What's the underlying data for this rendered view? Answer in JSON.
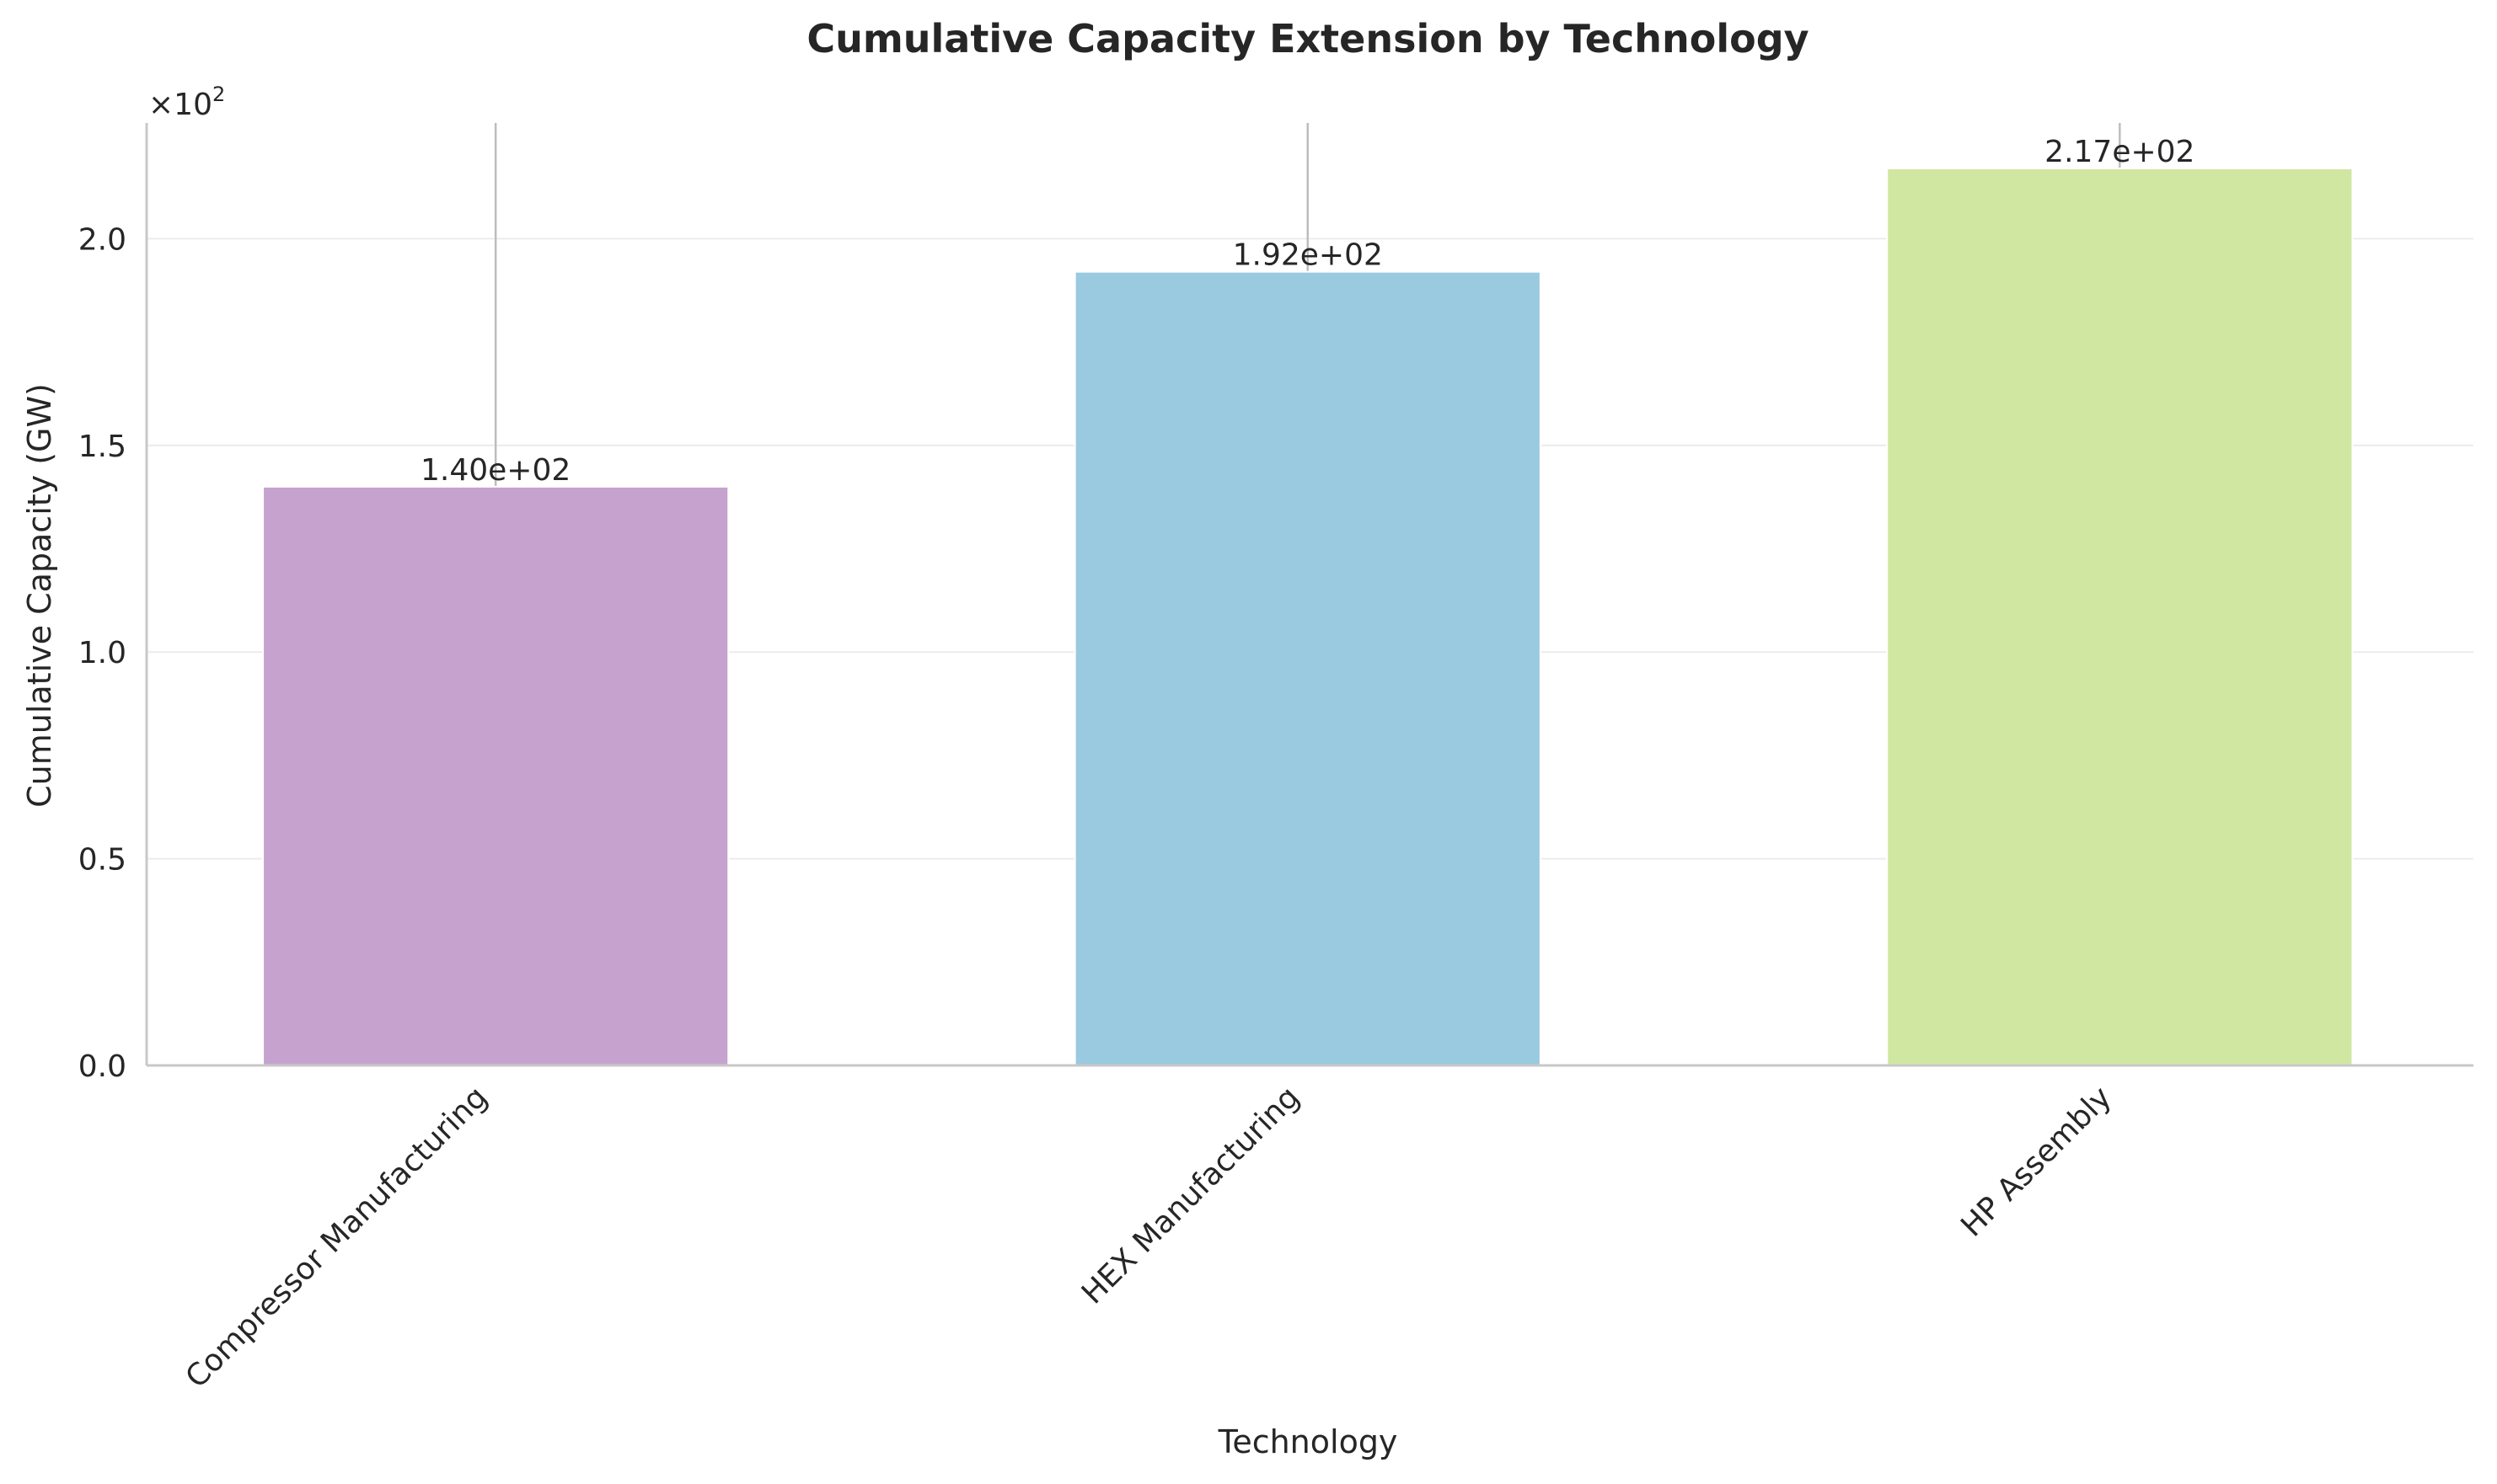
{
  "chart_data": {
    "type": "bar",
    "title": "Cumulative Capacity Extension by Technology",
    "xlabel": "Technology",
    "ylabel": "Cumulative Capacity (GW)",
    "y_offset_text": "×10",
    "y_offset_exponent": "2",
    "y_scale_factor": 100,
    "ylim": [
      0,
      228
    ],
    "yticks": [
      0,
      50,
      100,
      150,
      200
    ],
    "ytick_labels": [
      "0.0",
      "0.5",
      "1.0",
      "1.5",
      "2.0"
    ],
    "categories": [
      "Compressor Manufacturing",
      "HEX Manufacturing",
      "HP Assembly"
    ],
    "values": [
      140,
      192,
      217
    ],
    "value_labels": [
      "1.40e+02",
      "1.92e+02",
      "2.17e+02"
    ],
    "colors": [
      "#c6a3cf",
      "#99cae0",
      "#d0e7a2"
    ],
    "error_upper": [
      228,
      228,
      228
    ],
    "grid": "horizontal",
    "legend": "none"
  }
}
